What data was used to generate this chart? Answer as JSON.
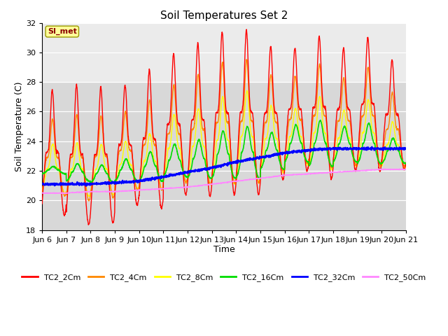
{
  "title": "Soil Temperatures Set 2",
  "xlabel": "Time",
  "ylabel": "Soil Temperature (C)",
  "ylim": [
    18,
    32
  ],
  "yticks": [
    18,
    20,
    22,
    24,
    26,
    28,
    30,
    32
  ],
  "x_labels": [
    "Jun 6",
    "Jun 7",
    "Jun 8",
    "Jun 9",
    "Jun 10",
    "Jun 11",
    "Jun 12",
    "Jun 13",
    "Jun 14",
    "Jun 15",
    "Jun 16",
    "Jun 17",
    "Jun 18",
    "Jun 19",
    "Jun 20",
    "Jun 21"
  ],
  "series_names": [
    "TC2_2Cm",
    "TC2_4Cm",
    "TC2_8Cm",
    "TC2_16Cm",
    "TC2_32Cm",
    "TC2_50Cm"
  ],
  "series_colors": [
    "#ff0000",
    "#ff8800",
    "#ffff00",
    "#00dd00",
    "#0000ff",
    "#ff88ff"
  ],
  "series_linewidths": [
    1.0,
    1.0,
    1.0,
    1.2,
    1.5,
    1.0
  ],
  "annotation_text": "SI_met",
  "annotation_color": "#8b0000",
  "annotation_bg": "#ffff99",
  "annotation_border": "#999900",
  "bg_dark": "#d8d8d8",
  "bg_light": "#ebebeb",
  "bg_top": "#f0f0f0",
  "n_points_per_day": 144,
  "n_days": 15,
  "base_min_2cm": [
    19.0,
    18.4,
    18.5,
    19.7,
    19.5,
    20.4,
    20.3,
    20.4,
    20.4,
    21.4,
    22.0,
    21.5,
    22.0,
    22.0,
    22.1
  ],
  "base_max_2cm": [
    27.5,
    27.8,
    27.7,
    27.8,
    28.8,
    29.9,
    30.6,
    31.4,
    31.5,
    30.4,
    30.3,
    31.1,
    30.3,
    31.0,
    29.5
  ],
  "base_min_4cm": [
    20.3,
    20.0,
    20.2,
    20.7,
    20.7,
    21.2,
    21.1,
    21.2,
    21.2,
    22.0,
    22.5,
    22.2,
    22.4,
    22.4,
    22.3
  ],
  "base_max_4cm": [
    25.5,
    25.8,
    25.7,
    26.0,
    26.8,
    27.8,
    28.5,
    29.3,
    29.5,
    28.5,
    28.4,
    29.2,
    28.3,
    29.0,
    27.3
  ],
  "base_min_8cm": [
    20.5,
    20.3,
    20.4,
    20.8,
    20.8,
    21.2,
    21.1,
    21.1,
    21.2,
    21.9,
    22.4,
    22.1,
    22.3,
    22.3,
    22.2
  ],
  "base_max_8cm": [
    23.8,
    23.9,
    23.8,
    24.0,
    24.5,
    25.8,
    26.2,
    27.0,
    27.4,
    26.4,
    26.2,
    27.0,
    26.1,
    26.8,
    25.3
  ],
  "base_min_16cm": [
    21.8,
    21.3,
    21.2,
    21.3,
    21.3,
    21.6,
    21.5,
    21.5,
    21.5,
    22.1,
    22.6,
    22.3,
    22.6,
    22.5,
    22.5
  ],
  "base_max_16cm": [
    22.3,
    22.5,
    22.4,
    22.8,
    23.3,
    23.8,
    24.1,
    24.7,
    25.0,
    24.6,
    25.1,
    25.4,
    25.0,
    25.2,
    24.2
  ],
  "base_32cm": [
    21.1,
    21.1,
    21.1,
    21.2,
    21.3,
    21.6,
    21.9,
    22.2,
    22.6,
    22.9,
    23.2,
    23.4,
    23.5,
    23.5,
    23.5
  ],
  "base_50cm": [
    20.5,
    20.5,
    20.6,
    20.6,
    20.7,
    20.8,
    20.9,
    21.1,
    21.3,
    21.5,
    21.7,
    21.8,
    21.9,
    22.0,
    22.1
  ],
  "peak_sharpness": 4.0
}
